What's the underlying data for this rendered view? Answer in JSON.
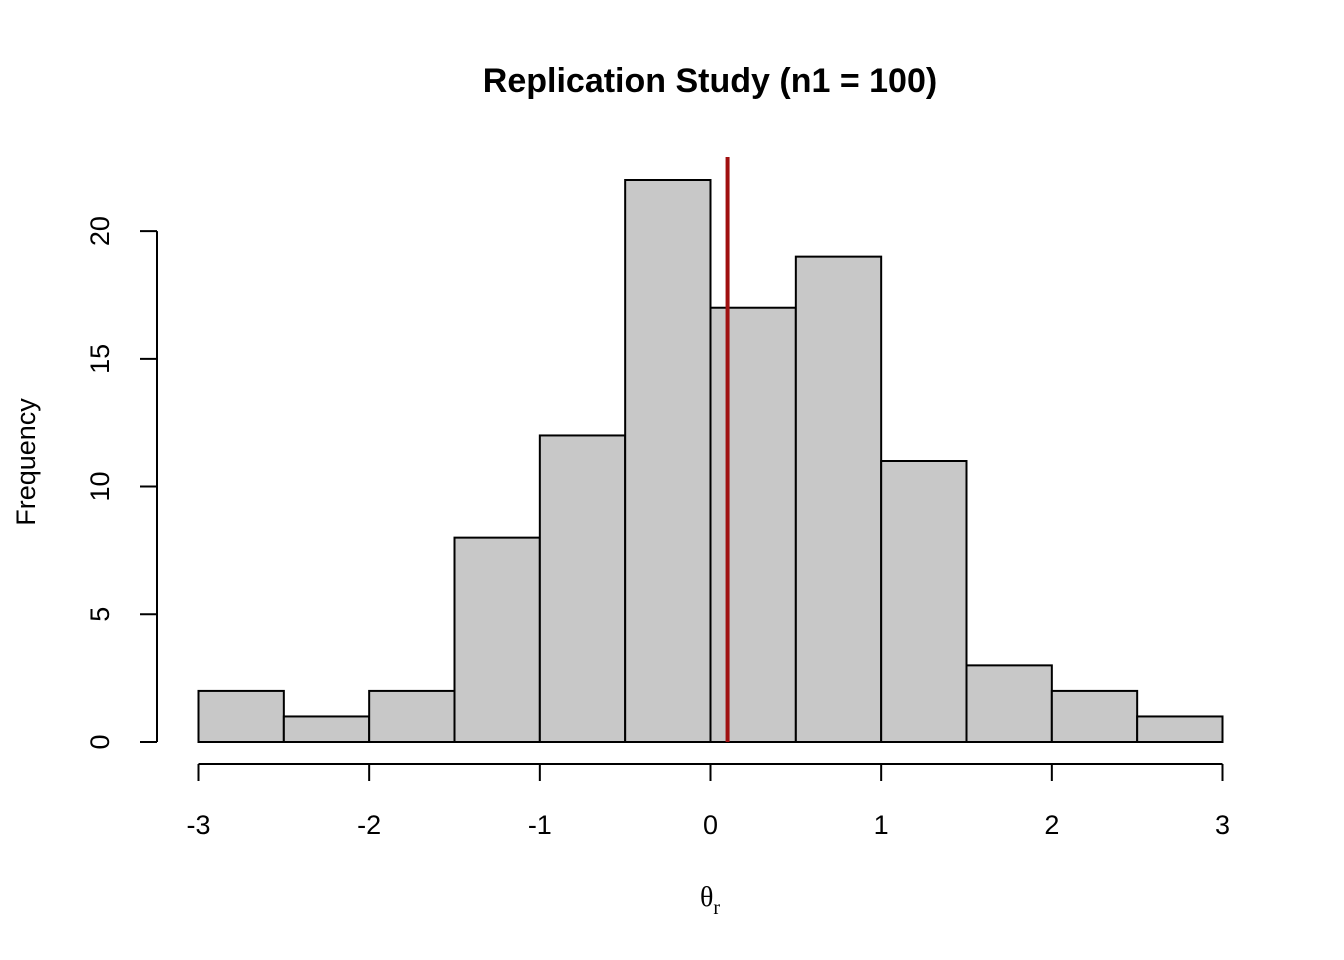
{
  "chart_data": {
    "type": "histogram",
    "title": "Replication Study (n1 = 100)",
    "ylabel": "Frequency",
    "xlabel_symbol": "θ",
    "xlabel_subscript": "r",
    "bin_edges": [
      -3,
      -2.5,
      -2,
      -1.5,
      -1,
      -0.5,
      0,
      0.5,
      1,
      1.5,
      2,
      2.5,
      3
    ],
    "counts": [
      2,
      1,
      2,
      8,
      12,
      22,
      17,
      19,
      11,
      3,
      2,
      1
    ],
    "xlim": [
      -3,
      3
    ],
    "ylim": [
      0,
      22
    ],
    "xticks": [
      -3,
      -2,
      -1,
      0,
      1,
      2,
      3
    ],
    "yticks": [
      0,
      5,
      10,
      15,
      20
    ],
    "reference_line_x": 0.1,
    "bar_color": "#c8c8c8",
    "bar_edge_color": "#000000",
    "reference_line_color": "#a01010",
    "grid": false
  }
}
